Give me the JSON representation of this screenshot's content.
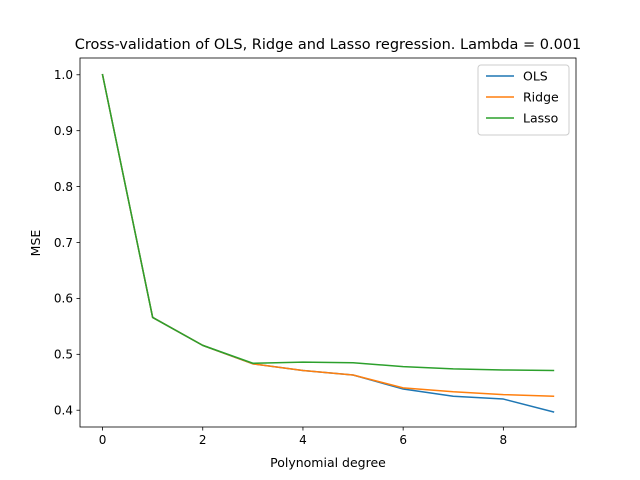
{
  "chart_data": {
    "type": "line",
    "title": "Cross-validation of OLS, Ridge and Lasso regression. Lambda = 0.001",
    "xlabel": "Polynomial degree",
    "ylabel": "MSE",
    "x": [
      0,
      1,
      2,
      3,
      4,
      5,
      6,
      7,
      8,
      9
    ],
    "xlim": [
      -0.45,
      9.45
    ],
    "ylim": [
      0.37,
      1.03
    ],
    "xticks": [
      "0",
      "2",
      "4",
      "6",
      "8"
    ],
    "yticks": [
      "0.4",
      "0.5",
      "0.6",
      "0.7",
      "0.8",
      "0.9",
      "1.0"
    ],
    "grid": false,
    "legend_position": "top-right",
    "series": [
      {
        "name": "OLS",
        "color": "#1f77b4",
        "values": [
          1.0,
          0.566,
          0.516,
          0.483,
          0.471,
          0.463,
          0.438,
          0.425,
          0.42,
          0.397
        ]
      },
      {
        "name": "Ridge",
        "color": "#ff7f0e",
        "values": [
          1.0,
          0.566,
          0.516,
          0.483,
          0.471,
          0.463,
          0.44,
          0.433,
          0.428,
          0.425
        ]
      },
      {
        "name": "Lasso",
        "color": "#2ca02c",
        "values": [
          1.0,
          0.566,
          0.516,
          0.484,
          0.486,
          0.485,
          0.478,
          0.474,
          0.472,
          0.471
        ]
      }
    ]
  }
}
